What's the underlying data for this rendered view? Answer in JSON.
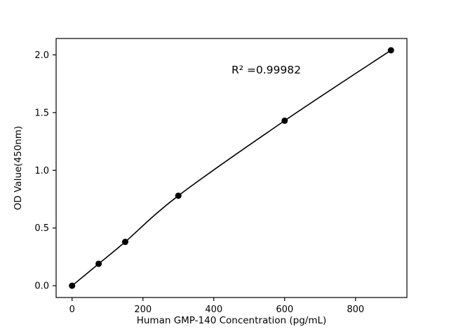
{
  "chart_data": {
    "type": "scatter",
    "x": [
      0,
      75,
      150,
      300,
      600,
      900
    ],
    "y": [
      0.0,
      0.19,
      0.38,
      0.78,
      1.43,
      2.04
    ],
    "title": "",
    "xlabel": "Human GMP-140 Concentration (pg/mL)",
    "ylabel": "OD Value(450nm)",
    "annotation": "R² =0.99982",
    "xlim": [
      -45,
      945
    ],
    "ylim": [
      -0.102,
      2.142
    ],
    "xticks": [
      0,
      200,
      400,
      600,
      800
    ],
    "yticks": [
      0.0,
      0.5,
      1.0,
      1.5,
      2.0
    ],
    "xtick_labels": [
      "0",
      "200",
      "400",
      "600",
      "800"
    ],
    "ytick_labels": [
      "0.0",
      "0.5",
      "1.0",
      "1.5",
      "2.0"
    ],
    "grid": false,
    "legend": null,
    "marker_color": "#000000",
    "line_color": "#000000",
    "background_color": "#ffffff"
  }
}
